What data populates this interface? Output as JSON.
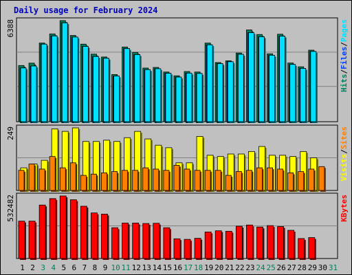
{
  "title": "Daily usage for February 2024",
  "colors": {
    "background": "#c0c0c0",
    "hits": "#00805c",
    "files": "#0040ff",
    "pages": "#00e0ff",
    "visits": "#ffff00",
    "sites": "#ff8000",
    "kbytes": "#ff0000",
    "weekend_day": "#00805c",
    "weekday_day": "#000000",
    "title_text": "#0000c0"
  },
  "panels": {
    "hits": {
      "max_label": "6388",
      "side_labels": [
        {
          "text": "Hits",
          "color": "#00805c"
        },
        {
          "text": "/",
          "color": "#000000"
        },
        {
          "text": "Files",
          "color": "#0040ff"
        },
        {
          "text": "/",
          "color": "#000000"
        },
        {
          "text": "Pages",
          "color": "#00e0ff"
        }
      ]
    },
    "visits": {
      "max_label": "249",
      "side_labels": [
        {
          "text": "Visits",
          "color": "#ffff00"
        },
        {
          "text": "/",
          "color": "#000000"
        },
        {
          "text": "Sites",
          "color": "#ff8000"
        }
      ]
    },
    "kbytes": {
      "max_label": "532482",
      "side_labels": [
        {
          "text": "KBytes",
          "color": "#ff0000"
        }
      ]
    }
  },
  "chart_data": [
    {
      "type": "bar",
      "title": "Daily usage for February 2024",
      "categories": [
        "1",
        "2",
        "3",
        "4",
        "5",
        "6",
        "7",
        "8",
        "9",
        "10",
        "11",
        "12",
        "13",
        "14",
        "15",
        "16",
        "17",
        "18",
        "19",
        "20",
        "21",
        "22",
        "23",
        "24",
        "25",
        "26",
        "27",
        "28",
        "29",
        "30",
        "31"
      ],
      "weekend_days": [
        "3",
        "4",
        "10",
        "11",
        "17",
        "18",
        "24",
        "25",
        "31"
      ],
      "ylim": [
        0,
        6388
      ],
      "series": [
        {
          "name": "Hits",
          "values": [
            3550,
            3700,
            4970,
            5550,
            6390,
            5450,
            4900,
            4270,
            4090,
            2980,
            4720,
            4380,
            3390,
            3430,
            3140,
            2900,
            3170,
            3140,
            4970,
            3740,
            3850,
            4340,
            5800,
            5510,
            4290,
            5530,
            3710,
            3470,
            4520,
            null,
            null
          ]
        },
        {
          "name": "Files",
          "values": [
            3400,
            3520,
            4900,
            5420,
            6250,
            5350,
            4760,
            4120,
            4010,
            2890,
            4620,
            4240,
            3290,
            3350,
            3060,
            2820,
            3070,
            3050,
            4860,
            3670,
            3790,
            4260,
            5630,
            5370,
            4200,
            5410,
            3620,
            3370,
            4440,
            null,
            null
          ]
        },
        {
          "name": "Pages",
          "values": [
            3400,
            3520,
            4900,
            5420,
            6250,
            5350,
            4760,
            4120,
            4010,
            2890,
            4620,
            4240,
            3290,
            3350,
            3060,
            2820,
            3070,
            3050,
            4860,
            3670,
            3790,
            4260,
            5630,
            5370,
            4200,
            5410,
            3620,
            3370,
            4440,
            null,
            null
          ]
        }
      ]
    },
    {
      "type": "bar",
      "categories": [
        "1",
        "2",
        "3",
        "4",
        "5",
        "6",
        "7",
        "8",
        "9",
        "10",
        "11",
        "12",
        "13",
        "14",
        "15",
        "16",
        "17",
        "18",
        "19",
        "20",
        "21",
        "22",
        "23",
        "24",
        "25",
        "26",
        "27",
        "28",
        "29",
        "30",
        "31"
      ],
      "ylim": [
        0,
        249
      ],
      "series": [
        {
          "name": "Visits",
          "values": [
            90,
            105,
            120,
            245,
            235,
            249,
            195,
            195,
            200,
            195,
            210,
            235,
            205,
            180,
            170,
            110,
            110,
            215,
            140,
            135,
            145,
            145,
            155,
            175,
            140,
            140,
            135,
            155,
            130,
            null,
            null
          ]
        },
        {
          "name": "Sites",
          "values": [
            80,
            105,
            85,
            135,
            90,
            110,
            60,
            65,
            70,
            75,
            80,
            80,
            90,
            85,
            80,
            100,
            85,
            80,
            80,
            80,
            60,
            75,
            80,
            90,
            90,
            85,
            70,
            75,
            85,
            95,
            null
          ]
        }
      ]
    },
    {
      "type": "bar",
      "categories": [
        "1",
        "2",
        "3",
        "4",
        "5",
        "6",
        "7",
        "8",
        "9",
        "10",
        "11",
        "12",
        "13",
        "14",
        "15",
        "16",
        "17",
        "18",
        "19",
        "20",
        "21",
        "22",
        "23",
        "24",
        "25",
        "26",
        "27",
        "28",
        "29",
        "30",
        "31"
      ],
      "ylim": [
        0,
        532482
      ],
      "series": [
        {
          "name": "KBytes",
          "values": [
            318000,
            318000,
            455000,
            510000,
            532482,
            500000,
            445000,
            388000,
            378000,
            262000,
            302000,
            302000,
            298000,
            300000,
            262000,
            168000,
            163000,
            172000,
            226000,
            236000,
            232000,
            275000,
            285000,
            268000,
            280000,
            272000,
            240000,
            170000,
            178000,
            null,
            null
          ]
        }
      ]
    }
  ]
}
